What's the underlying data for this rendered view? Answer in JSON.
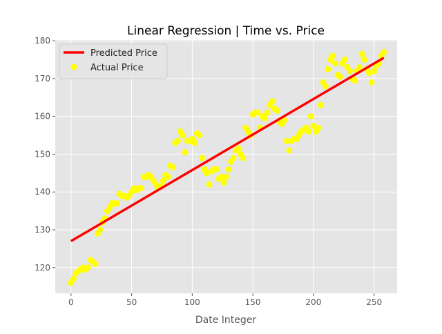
{
  "chart_data": {
    "type": "scatter",
    "title": "Linear Regression | Time vs. Price",
    "xlabel": "Date Integer",
    "ylabel": "",
    "xlim": [
      -13,
      269
    ],
    "ylim": [
      113.2,
      180.2
    ],
    "xticks": [
      0,
      50,
      100,
      150,
      200,
      250
    ],
    "yticks": [
      120,
      130,
      140,
      150,
      160,
      170,
      180
    ],
    "grid": true,
    "legend": "top-left",
    "background_color": "#e5e5e5",
    "series": [
      {
        "name": "Predicted Price",
        "kind": "line",
        "color": "#ff0000",
        "x": [
          0,
          258
        ],
        "y": [
          127,
          175.5
        ]
      },
      {
        "name": "Actual Price",
        "kind": "scatter",
        "color": "#ffff00",
        "x": [
          0,
          2,
          4,
          6,
          8,
          10,
          12,
          14,
          16,
          18,
          20,
          22,
          24,
          26,
          28,
          30,
          32,
          34,
          36,
          38,
          40,
          42,
          44,
          46,
          48,
          50,
          52,
          54,
          56,
          58,
          60,
          62,
          64,
          66,
          68,
          70,
          72,
          74,
          76,
          78,
          80,
          82,
          84,
          86,
          88,
          90,
          92,
          94,
          96,
          98,
          100,
          102,
          104,
          106,
          108,
          110,
          112,
          114,
          116,
          118,
          120,
          122,
          124,
          126,
          128,
          130,
          132,
          134,
          136,
          138,
          140,
          142,
          144,
          146,
          148,
          150,
          152,
          154,
          156,
          158,
          160,
          162,
          164,
          166,
          168,
          170,
          172,
          174,
          176,
          178,
          180,
          182,
          184,
          186,
          188,
          190,
          192,
          194,
          196,
          198,
          200,
          202,
          204,
          206,
          208,
          210,
          212,
          214,
          216,
          218,
          220,
          222,
          224,
          226,
          228,
          230,
          232,
          234,
          236,
          238,
          240,
          242,
          244,
          246,
          248,
          250,
          252,
          254,
          256,
          258
        ],
        "y": [
          116,
          117,
          118.5,
          119,
          119.5,
          120,
          119.5,
          120,
          122,
          121.5,
          121,
          129,
          130,
          132,
          133,
          135,
          136,
          137,
          137,
          137,
          139.5,
          139,
          139,
          138.5,
          139,
          140,
          141,
          140.5,
          141,
          141,
          144,
          144,
          144.5,
          144,
          143,
          142,
          141,
          141.5,
          143,
          144.5,
          144,
          147,
          146.5,
          153,
          153.5,
          156,
          155,
          150.5,
          153.5,
          153.5,
          154,
          153,
          155.5,
          155,
          149,
          146,
          145,
          142,
          145.5,
          146,
          146,
          143.5,
          144,
          142.5,
          144,
          146,
          148,
          149,
          151,
          151.5,
          150,
          149,
          157,
          156,
          155,
          160.5,
          161,
          161,
          157,
          160,
          159.5,
          161,
          163,
          164,
          162,
          161.5,
          158.5,
          158,
          159,
          153.5,
          151,
          153.5,
          154,
          154,
          155,
          156,
          156.5,
          157,
          156,
          160,
          157.5,
          156,
          157,
          163,
          169,
          168,
          172.5,
          175,
          176,
          174,
          171,
          170.5,
          174,
          175,
          173,
          172,
          170,
          169.5,
          172,
          173,
          176.5,
          175,
          172.5,
          171.5,
          169,
          172,
          173.5,
          174,
          176,
          177
        ]
      }
    ]
  }
}
